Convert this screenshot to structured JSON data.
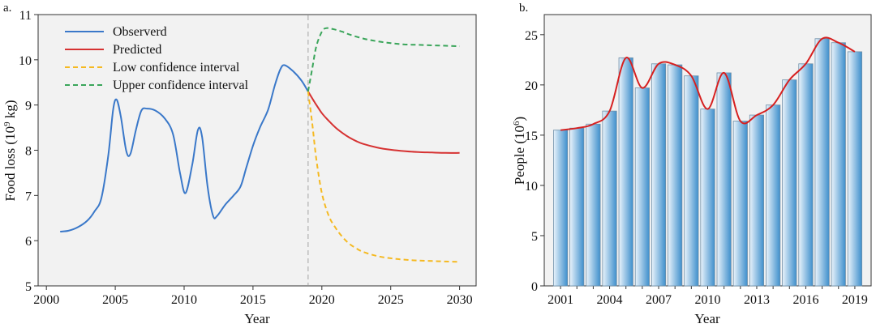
{
  "chart_data": [
    {
      "panel_label": "a.",
      "type": "line",
      "xlabel": "Year",
      "ylabel_main": "Food loss (10",
      "ylabel_sup": "9",
      "ylabel_tail": " kg)",
      "xlim": [
        1999.4,
        2031.2
      ],
      "ylim": [
        5,
        11
      ],
      "xticks": [
        2000,
        2005,
        2010,
        2015,
        2020,
        2025,
        2030
      ],
      "yticks": [
        5,
        6,
        7,
        8,
        9,
        10,
        11
      ],
      "background": "#f2f2f2",
      "divider_x": 2019,
      "legend_position": "top-left",
      "series": [
        {
          "name": "Observerd",
          "color": "#3a78c9",
          "dash": "solid",
          "x": [
            2001,
            2001.6,
            2002.3,
            2003,
            2003.5,
            2004,
            2004.5,
            2004.85,
            2005.1,
            2005.4,
            2005.8,
            2006.1,
            2006.5,
            2006.9,
            2007.3,
            2007.9,
            2008.6,
            2009.2,
            2009.7,
            2010.1,
            2010.6,
            2011.0,
            2011.3,
            2011.7,
            2012.1,
            2012.4,
            2013.0,
            2013.6,
            2014.1,
            2014.5,
            2015.0,
            2015.5,
            2016.1,
            2016.6,
            2017.0,
            2017.3,
            2017.9,
            2018.5,
            2019.0
          ],
          "y": [
            6.2,
            6.22,
            6.3,
            6.45,
            6.65,
            6.95,
            7.9,
            8.9,
            9.12,
            8.75,
            7.98,
            7.92,
            8.45,
            8.88,
            8.92,
            8.88,
            8.7,
            8.35,
            7.5,
            7.05,
            7.7,
            8.45,
            8.3,
            7.2,
            6.55,
            6.55,
            6.8,
            7.0,
            7.2,
            7.6,
            8.1,
            8.5,
            8.9,
            9.45,
            9.8,
            9.88,
            9.75,
            9.55,
            9.3
          ]
        },
        {
          "name": "Predicted",
          "color": "#d63232",
          "dash": "solid",
          "x": [
            2019.0,
            2019.5,
            2020,
            2020.5,
            2021,
            2021.5,
            2022,
            2022.5,
            2023,
            2024,
            2025,
            2026,
            2027,
            2028,
            2029,
            2030
          ],
          "y": [
            9.3,
            9.05,
            8.82,
            8.65,
            8.5,
            8.38,
            8.28,
            8.2,
            8.14,
            8.06,
            8.01,
            7.98,
            7.96,
            7.95,
            7.94,
            7.94
          ]
        },
        {
          "name": "Low confidence interval",
          "color": "#f5b921",
          "dash": "dashed",
          "x": [
            2019.0,
            2019.3,
            2019.6,
            2020.0,
            2020.5,
            2021.0,
            2021.5,
            2022.0,
            2022.5,
            2023,
            2024,
            2025,
            2026,
            2027,
            2028,
            2029,
            2030
          ],
          "y": [
            9.3,
            8.6,
            7.8,
            7.05,
            6.55,
            6.28,
            6.08,
            5.93,
            5.83,
            5.75,
            5.66,
            5.61,
            5.58,
            5.56,
            5.55,
            5.54,
            5.53
          ]
        },
        {
          "name": "Upper confidence interval",
          "color": "#3aa55a",
          "dash": "dashed",
          "x": [
            2019.0,
            2019.3,
            2019.6,
            2020.0,
            2020.3,
            2020.8,
            2021.5,
            2022.0,
            2023,
            2024,
            2025,
            2026,
            2027,
            2028,
            2029,
            2030
          ],
          "y": [
            9.3,
            9.8,
            10.3,
            10.62,
            10.7,
            10.68,
            10.62,
            10.56,
            10.47,
            10.41,
            10.37,
            10.34,
            10.33,
            10.32,
            10.31,
            10.3
          ]
        }
      ]
    },
    {
      "panel_label": "b.",
      "type": "bar",
      "xlabel": "Year",
      "ylabel_main": "People (10",
      "ylabel_sup": "6",
      "ylabel_tail": ")",
      "ylim": [
        0,
        27
      ],
      "yticks": [
        0,
        5,
        10,
        15,
        20,
        25
      ],
      "categories": [
        "2001",
        "2002",
        "2003",
        "2004",
        "2005",
        "2006",
        "2007",
        "2008",
        "2009",
        "2010",
        "2011",
        "2012",
        "2013",
        "2014",
        "2015",
        "2016",
        "2017",
        "2018",
        "2019"
      ],
      "xtick_labels": [
        "2001",
        "2004",
        "2007",
        "2010",
        "2013",
        "2016",
        "2019"
      ],
      "values": [
        15.5,
        15.7,
        16.1,
        17.4,
        22.7,
        19.7,
        22.1,
        22.0,
        20.9,
        17.6,
        21.2,
        16.4,
        17.0,
        18.0,
        20.5,
        22.1,
        24.6,
        24.2,
        23.3
      ],
      "bar_color_light": "#e9f3fb",
      "bar_color_dark": "#3e8fcc",
      "line_color": "#d62020",
      "background": "#f2f2f2"
    }
  ]
}
